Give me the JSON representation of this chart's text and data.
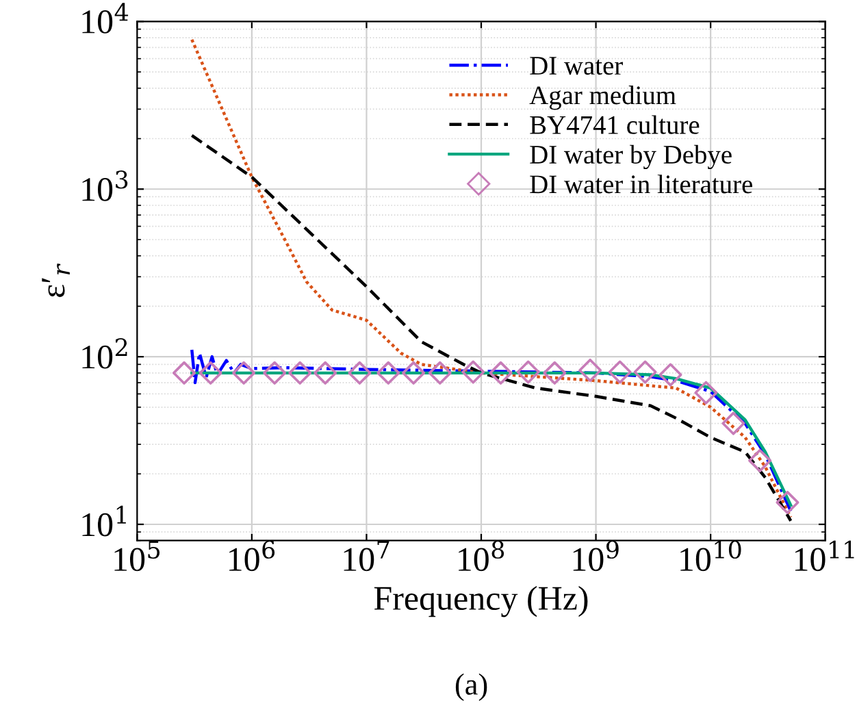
{
  "chart_data": {
    "type": "line",
    "xlabel": "Frequency (Hz)",
    "ylabel": "ε′$_{r}$",
    "annotations": [
      "(a)"
    ],
    "log": "xy",
    "grid": true,
    "legend": "top right",
    "xlim": [
      100000,
      100000000000
    ],
    "ylim": [
      8,
      10000
    ],
    "xticks": [
      {
        "value": 100000,
        "label": "10$^{5}$"
      },
      {
        "value": 1000000,
        "label": "10$^{6}$"
      },
      {
        "value": 10000000,
        "label": "10$^{7}$"
      },
      {
        "value": 100000000,
        "label": "10$^{8}$"
      },
      {
        "value": 1000000000,
        "label": "10$^{9}$"
      },
      {
        "value": 10000000000,
        "label": "10$^{10}$"
      },
      {
        "value": 100000000000,
        "label": "10$^{11}$"
      }
    ],
    "yticks": [
      {
        "value": 10,
        "label": "10$^{1}$"
      },
      {
        "value": 100,
        "label": "10$^{2}$"
      },
      {
        "value": 1000,
        "label": "10$^{3}$"
      },
      {
        "value": 10000,
        "label": "10$^{4}$"
      }
    ],
    "series": [
      {
        "name": "DI water",
        "color": "#0000ff",
        "line_style": "dashdot",
        "marker": "none",
        "x": [
          300000,
          320000,
          350000,
          400000,
          450000,
          500000,
          600000,
          700000,
          800000,
          1000000,
          2000000,
          10000000,
          100000000,
          1000000000,
          3000000000,
          5000000000,
          10000000000,
          20000000000,
          30000000000,
          50000000000
        ],
        "values": [
          110,
          70,
          105,
          75,
          100,
          78,
          95,
          80,
          90,
          85,
          86,
          84,
          82,
          80,
          76,
          72,
          62,
          40,
          26,
          12
        ]
      },
      {
        "name": "Agar medium",
        "color": "#d95319",
        "line_style": "dotted",
        "marker": "none",
        "x": [
          300000,
          1000000,
          2000000,
          3000000,
          5000000,
          10000000,
          20000000,
          30000000,
          100000000,
          1000000000,
          5000000000,
          10000000000,
          20000000000,
          30000000000,
          50000000000
        ],
        "values": [
          7800,
          1180,
          480,
          280,
          190,
          165,
          105,
          90,
          80,
          72,
          65,
          50,
          33,
          22,
          11
        ]
      },
      {
        "name": "BY4741 culture",
        "color": "#000000",
        "line_style": "dashed",
        "marker": "none",
        "x": [
          300000,
          1000000,
          10000000,
          30000000,
          70000000,
          100000000,
          300000000,
          1000000000,
          3000000000,
          5000000000,
          10000000000,
          20000000000,
          30000000000,
          50000000000
        ],
        "values": [
          2090,
          1180,
          262,
          123,
          90,
          80,
          65,
          58,
          51,
          43,
          33,
          27,
          19,
          10.5
        ]
      },
      {
        "name": "DI water by Debye",
        "color": "#00a67e",
        "line_style": "solid",
        "marker": "none",
        "x": [
          300000,
          1000000,
          10000000,
          100000000,
          1000000000,
          3000000000,
          5000000000,
          10000000000,
          20000000000,
          30000000000,
          50000000000
        ],
        "values": [
          80,
          80,
          80,
          80,
          80,
          78,
          74,
          65,
          42,
          27,
          13
        ]
      },
      {
        "name": "DI water in literature",
        "color": "#c77cb8",
        "type": "scatter",
        "marker": "diamond",
        "x": [
          257000,
          437000,
          851000,
          1580000,
          2630000,
          4370000,
          8710000,
          15500000,
          25700000,
          43700000,
          85100000,
          148000000,
          257000000,
          437000000,
          891000000,
          1620000000,
          2690000000,
          4470000000,
          9120000000,
          15800000000,
          26900000000,
          46800000000
        ],
        "values": [
          80,
          80,
          80,
          80,
          80,
          80,
          80,
          80,
          80,
          80,
          81,
          80,
          81,
          80,
          83,
          81,
          81,
          78,
          61,
          40,
          24,
          13.5
        ]
      }
    ]
  }
}
